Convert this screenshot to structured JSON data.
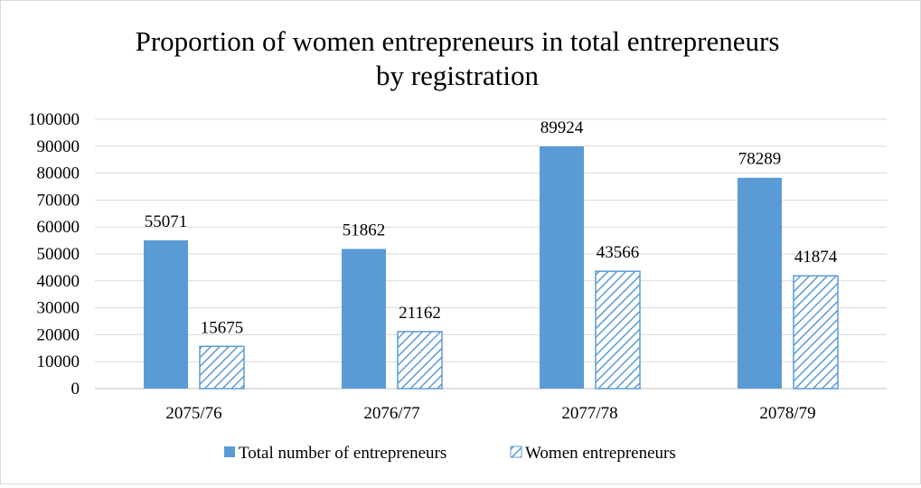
{
  "chart_data": {
    "type": "bar",
    "title_lines": [
      "Proportion of women entrepreneurs in total entrepreneurs",
      "by registration"
    ],
    "categories": [
      "2075/76",
      "2076/77",
      "2077/78",
      "2078/79"
    ],
    "series": [
      {
        "name": "Total number of entrepreneurs",
        "values": [
          55071,
          51862,
          89924,
          78289
        ],
        "color": "#5b9bd5",
        "style": "solid"
      },
      {
        "name": "Women entrepreneurs",
        "values": [
          15675,
          21162,
          43566,
          41874
        ],
        "color": "#5b9bd5",
        "style": "hatched"
      }
    ],
    "ylim": [
      0,
      100000
    ],
    "yticks": [
      "0",
      "10000",
      "20000",
      "30000",
      "40000",
      "50000",
      "60000",
      "70000",
      "80000",
      "90000",
      "100000"
    ],
    "grid": true,
    "legend_position": "bottom"
  }
}
